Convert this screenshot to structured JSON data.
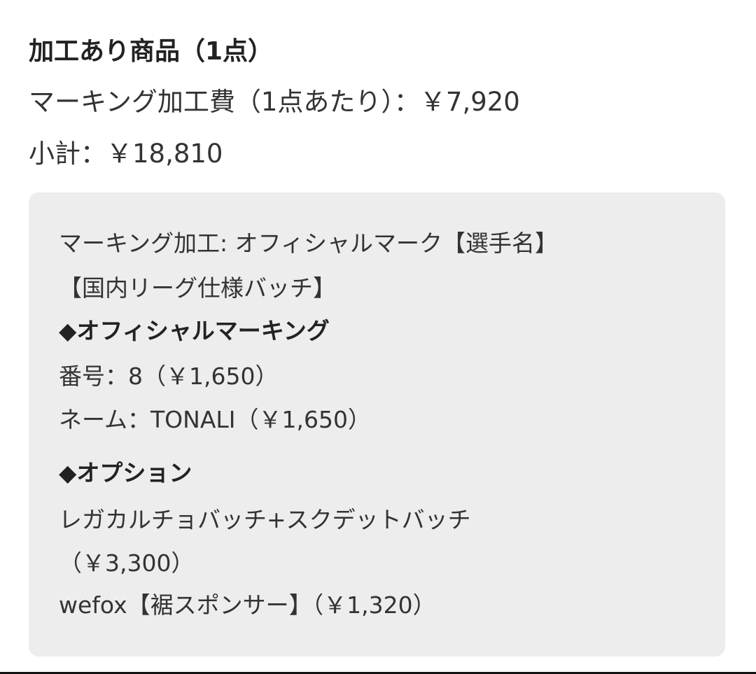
{
  "header": {
    "title": "加工あり商品（1点）",
    "fee_line": "マーキング加工費（1点あたり）：￥7,920",
    "subtotal_line": "小計：￥18,810"
  },
  "details": {
    "lines": [
      "マーキング加工: オフィシャルマーク【選手名】",
      "【国内リーグ仕様バッチ】",
      "◆オフィシャルマーキング",
      "番号：8（￥1,650）",
      "ネーム：TONALI（￥1,650）",
      "◆オプション",
      "レガカルチョバッチ+スクデットバッチ",
      "（￥3,300）",
      "wefox【裾スポンサー】（￥1,320）"
    ]
  }
}
